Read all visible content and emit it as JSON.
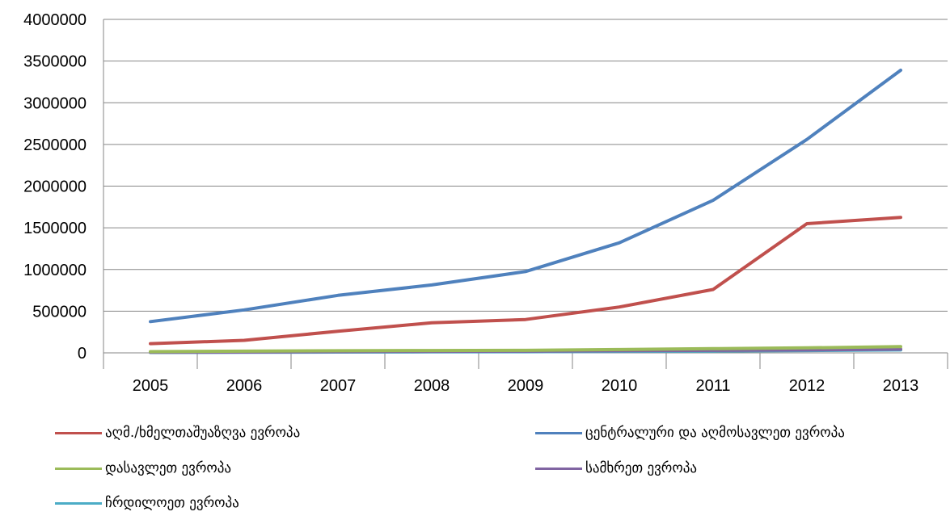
{
  "chart_data": {
    "type": "line",
    "title": "",
    "xlabel": "",
    "ylabel": "",
    "x": [
      "2005",
      "2006",
      "2007",
      "2008",
      "2009",
      "2010",
      "2011",
      "2012",
      "2013"
    ],
    "ylim": [
      0,
      4000000
    ],
    "yticks": [
      "0",
      "500000",
      "1000000",
      "1500000",
      "2000000",
      "2500000",
      "3000000",
      "3500000",
      "4000000"
    ],
    "grid": true,
    "legend_position": "bottom",
    "series": [
      {
        "name": "აღმ./ხმელთაშუაზღვა ევროპა",
        "color": "#C0504D",
        "values": [
          110000,
          150000,
          260000,
          360000,
          400000,
          550000,
          760000,
          1550000,
          1625000
        ]
      },
      {
        "name": "ცენტრალური და აღმოსავლეთ ევროპა",
        "color": "#4F81BD",
        "values": [
          375000,
          515000,
          690000,
          815000,
          975000,
          1320000,
          1830000,
          2560000,
          3390000
        ]
      },
      {
        "name": "დასავლეთ ევროპა",
        "color": "#9BBB59",
        "values": [
          15000,
          20000,
          25000,
          28000,
          30000,
          40000,
          50000,
          60000,
          75000
        ]
      },
      {
        "name": "სამხრეთ ევროპა",
        "color": "#8064A2",
        "values": [
          8000,
          10000,
          15000,
          18000,
          20000,
          25000,
          30000,
          35000,
          45000
        ]
      },
      {
        "name": "ჩრდილოეთ ევროპა",
        "color": "#4BACC6",
        "values": [
          5000,
          7000,
          10000,
          12000,
          14000,
          18000,
          22000,
          28000,
          35000
        ]
      }
    ]
  }
}
